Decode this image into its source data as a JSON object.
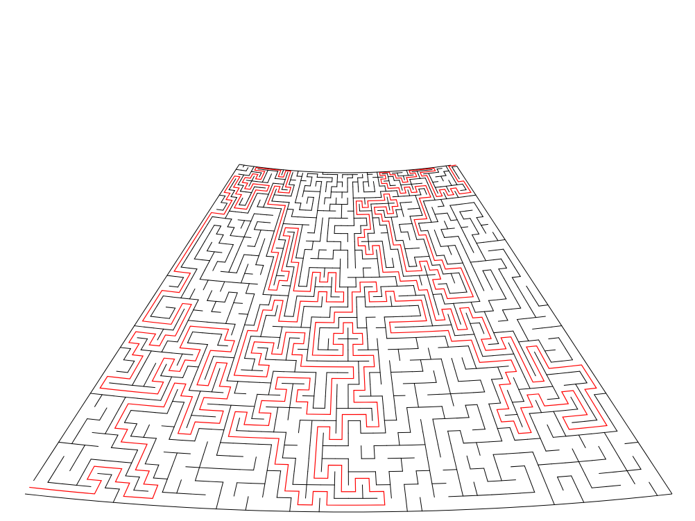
{
  "maze": {
    "rows": 36,
    "cols": 44,
    "seed": 20240517,
    "wall_color": "#000000",
    "solution_color": "#ff0000",
    "background_color": "#ffffff",
    "solution": {
      "start": {
        "row": 35,
        "col": 0
      },
      "end": {
        "row": 0,
        "col": 43
      },
      "shown": true
    }
  }
}
